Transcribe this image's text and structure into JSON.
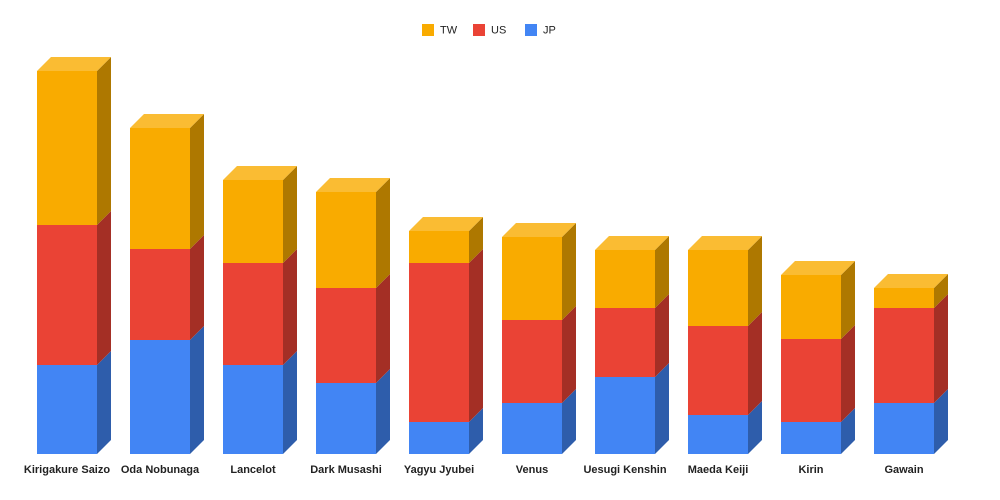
{
  "chart_data": {
    "type": "bar3d-stacked",
    "categories": [
      "Kirigakure Saizo",
      "Oda Nobunaga",
      "Lancelot",
      "Dark Musashi",
      "Yagyu Jyubei",
      "Venus",
      "Uesugi Kenshin",
      "Maeda Keiji",
      "Kirin",
      "Gawain"
    ],
    "series": [
      {
        "name": "TW",
        "color": "#f9ab00",
        "values": [
          154,
          121,
          83,
          96,
          32,
          83,
          58,
          76,
          64,
          20
        ]
      },
      {
        "name": "US",
        "color": "#ea4335",
        "values": [
          140,
          91,
          102,
          95,
          159,
          83,
          69,
          89,
          83,
          95
        ]
      },
      {
        "name": "JP",
        "color": "#4285f4",
        "values": [
          89,
          114,
          89,
          71,
          32,
          51,
          77,
          39,
          32,
          51
        ]
      }
    ],
    "legend": "top"
  }
}
